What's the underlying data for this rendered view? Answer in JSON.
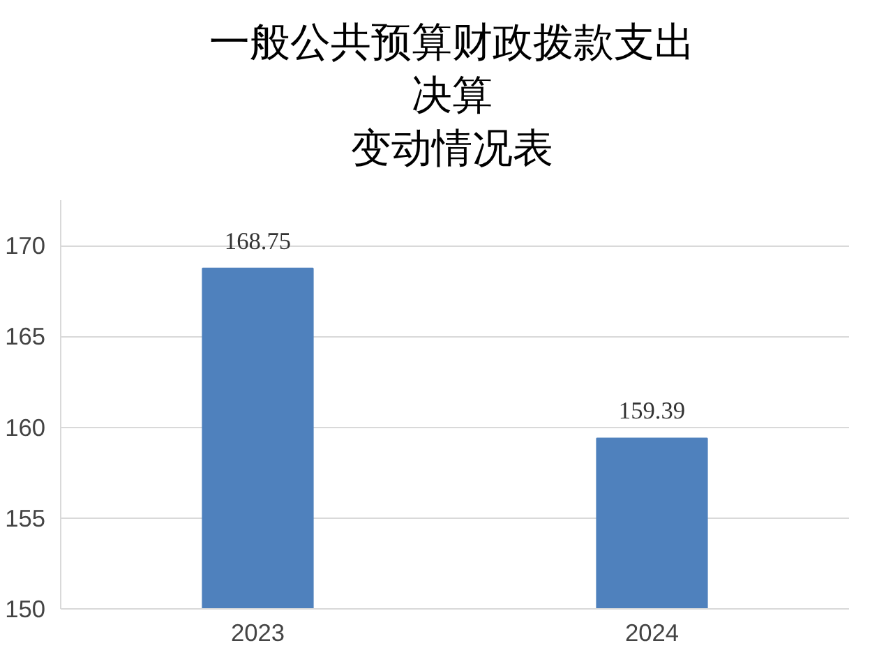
{
  "chart_data": {
    "type": "bar",
    "title": "一般公共预算财政拨款支出决算变动情况表",
    "categories": [
      "2023",
      "2024"
    ],
    "values": [
      168.75,
      159.39
    ],
    "color": "#4f81bd",
    "ylim": [
      150,
      172.5
    ],
    "yticks": [
      150,
      155,
      160,
      165,
      170
    ],
    "grid": "y",
    "data_labels": true
  }
}
